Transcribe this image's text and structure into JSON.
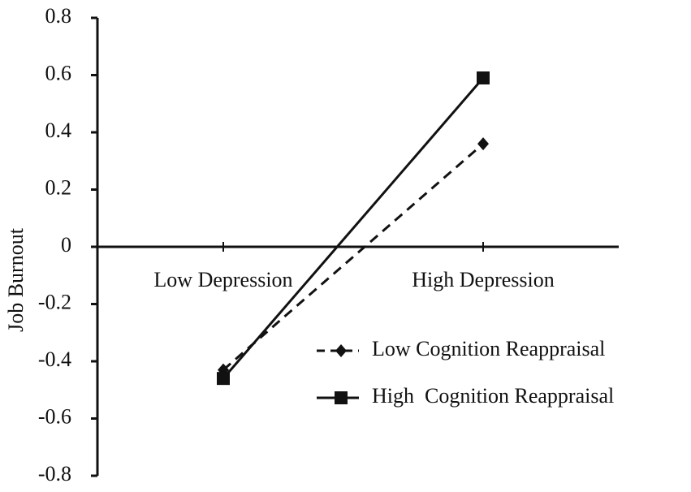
{
  "chart_data": {
    "type": "line",
    "y_label": "Job Burnout",
    "categories": [
      "Low Depression",
      "High Depression"
    ],
    "series": [
      {
        "name": "Low Cognition Reappraisal",
        "color": "#111111",
        "line_style": "dashed",
        "marker": "diamond",
        "values": [
          -0.43,
          0.36
        ]
      },
      {
        "name": "High  Cognition Reappraisal",
        "color": "#111111",
        "line_style": "solid",
        "marker": "square",
        "values": [
          -0.46,
          0.59
        ]
      }
    ],
    "ylim": [
      -0.8,
      0.8
    ],
    "yticks": [
      0.8,
      0.6,
      0.4,
      0.2,
      0,
      -0.2,
      -0.4,
      -0.6,
      -0.8
    ]
  }
}
